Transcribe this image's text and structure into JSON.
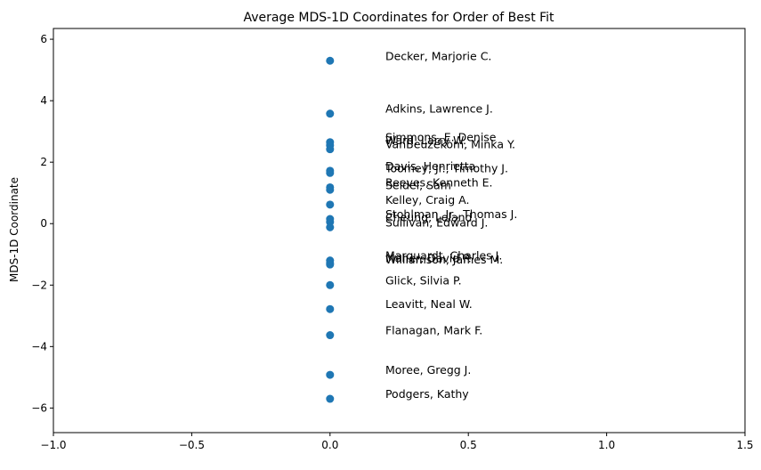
{
  "chart_data": {
    "type": "scatter",
    "title": "Average MDS-1D Coordinates for Order of Best Fit",
    "xlabel": "",
    "ylabel": "MDS-1D Coordinate",
    "xlim": [
      -1.0,
      1.5
    ],
    "ylim": [
      -6.8,
      6.35
    ],
    "xticks": [
      -1.0,
      -0.5,
      0.0,
      0.5,
      1.0,
      1.5
    ],
    "xtick_labels": [
      "−1.0",
      "−0.5",
      "0.0",
      "0.5",
      "1.0",
      "1.5"
    ],
    "yticks": [
      -6,
      -4,
      -2,
      0,
      2,
      4,
      6
    ],
    "ytick_labels": [
      "−6",
      "−4",
      "−2",
      "0",
      "2",
      "4",
      "6"
    ],
    "grid": false,
    "marker_color": "#1f77b4",
    "label_x_offset": 0.2,
    "points": [
      {
        "name": "Decker, Marjorie C.",
        "x": 0,
        "y": 5.3
      },
      {
        "name": "Adkins, Lawrence J.",
        "x": 0,
        "y": 3.58
      },
      {
        "name": "Simmons, E. Denise",
        "x": 0,
        "y": 2.65
      },
      {
        "name": "Ward, Larry W.",
        "x": 0,
        "y": 2.55
      },
      {
        "name": "VanBeuzekom, Minka Y.",
        "x": 0,
        "y": 2.42
      },
      {
        "name": "Davis, Henrietta",
        "x": 0,
        "y": 1.72
      },
      {
        "name": "Toomey, Jr., Timothy J.",
        "x": 0,
        "y": 1.65
      },
      {
        "name": "Reeves, Kenneth E.",
        "x": 0,
        "y": 1.18
      },
      {
        "name": "Seidel, Sam",
        "x": 0,
        "y": 1.1
      },
      {
        "name": "Kelley, Craig A.",
        "x": 0,
        "y": 0.62
      },
      {
        "name": "Stohlman, Jr., Thomas J.",
        "x": 0,
        "y": 0.15
      },
      {
        "name": "Cheung, Leland",
        "x": 0,
        "y": 0.05
      },
      {
        "name": "Sullivan, Edward J.",
        "x": 0,
        "y": -0.12
      },
      {
        "name": "Marquardt, Charles J.",
        "x": 0,
        "y": -1.2
      },
      {
        "name": "Maher, David P.",
        "x": 0,
        "y": -1.28
      },
      {
        "name": "Williamson, James M.",
        "x": 0,
        "y": -1.33
      },
      {
        "name": "Glick, Silvia P.",
        "x": 0,
        "y": -2.0
      },
      {
        "name": "Leavitt, Neal W.",
        "x": 0,
        "y": -2.78
      },
      {
        "name": "Flanagan, Mark F.",
        "x": 0,
        "y": -3.63
      },
      {
        "name": "Moree, Gregg J.",
        "x": 0,
        "y": -4.92
      },
      {
        "name": "Podgers, Kathy",
        "x": 0,
        "y": -5.7
      }
    ]
  }
}
